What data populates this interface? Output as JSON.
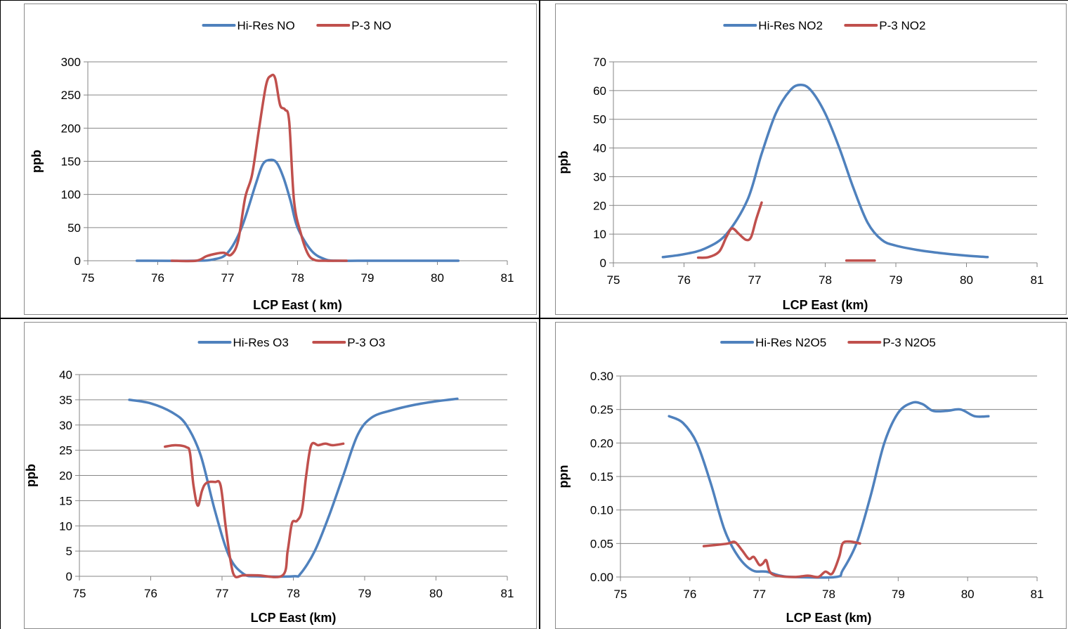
{
  "colors": {
    "hires": "#4F81BD",
    "p3": "#C0504D",
    "grid": "#868686",
    "axis": "#868686"
  },
  "chart_data": [
    {
      "type": "line",
      "xlabel": "LCP East ( km)",
      "ylabel": "ppb",
      "xlim": [
        75,
        81
      ],
      "ylim": [
        0,
        300
      ],
      "xticks": [
        "75",
        "76",
        "77",
        "78",
        "79",
        "80",
        "81"
      ],
      "yticks": [
        "0",
        "50",
        "100",
        "150",
        "200",
        "250",
        "300"
      ],
      "grid": true,
      "legend": "top-center",
      "series": [
        {
          "name": "Hi-Res NO",
          "color_key": "hires",
          "points": [
            [
              75.7,
              0
            ],
            [
              76.5,
              0
            ],
            [
              76.8,
              2
            ],
            [
              77.0,
              12
            ],
            [
              77.2,
              50
            ],
            [
              77.4,
              115
            ],
            [
              77.5,
              145
            ],
            [
              77.6,
              152
            ],
            [
              77.7,
              148
            ],
            [
              77.8,
              125
            ],
            [
              77.9,
              90
            ],
            [
              78.0,
              50
            ],
            [
              78.2,
              15
            ],
            [
              78.4,
              2
            ],
            [
              78.6,
              0
            ],
            [
              79.0,
              0
            ],
            [
              80.3,
              0
            ]
          ]
        },
        {
          "name": "P-3 NO",
          "color_key": "p3",
          "segments": [
            [
              [
                76.2,
                0
              ],
              [
                76.55,
                0
              ],
              [
                76.7,
                7
              ],
              [
                76.85,
                11
              ],
              [
                76.95,
                12
              ],
              [
                77.05,
                9
              ],
              [
                77.15,
                30
              ],
              [
                77.25,
                95
              ],
              [
                77.35,
                130
              ],
              [
                77.45,
                200
              ],
              [
                77.55,
                265
              ],
              [
                77.62,
                279
              ],
              [
                77.68,
                275
              ],
              [
                77.75,
                235
              ],
              [
                77.82,
                228
              ],
              [
                77.88,
                210
              ],
              [
                77.95,
                90
              ],
              [
                78.05,
                40
              ],
              [
                78.15,
                10
              ],
              [
                78.25,
                1
              ],
              [
                78.4,
                0
              ],
              [
                78.7,
                0
              ]
            ]
          ]
        }
      ]
    },
    {
      "type": "line",
      "xlabel": "LCP East (km)",
      "ylabel": "ppb",
      "xlim": [
        75,
        81
      ],
      "ylim": [
        0,
        70
      ],
      "xticks": [
        "75",
        "76",
        "77",
        "78",
        "79",
        "80",
        "81"
      ],
      "yticks": [
        "0",
        "10",
        "20",
        "30",
        "40",
        "50",
        "60",
        "70"
      ],
      "grid": true,
      "legend": "top-center",
      "series": [
        {
          "name": "Hi-Res NO2",
          "color_key": "hires",
          "points": [
            [
              75.7,
              2
            ],
            [
              76.0,
              3
            ],
            [
              76.3,
              5
            ],
            [
              76.6,
              10
            ],
            [
              76.9,
              22
            ],
            [
              77.1,
              38
            ],
            [
              77.3,
              52
            ],
            [
              77.5,
              60
            ],
            [
              77.65,
              62
            ],
            [
              77.8,
              60
            ],
            [
              78.0,
              52
            ],
            [
              78.2,
              40
            ],
            [
              78.4,
              26
            ],
            [
              78.6,
              14
            ],
            [
              78.8,
              8
            ],
            [
              79.0,
              6
            ],
            [
              79.3,
              4.5
            ],
            [
              79.6,
              3.5
            ],
            [
              80.0,
              2.5
            ],
            [
              80.3,
              2
            ]
          ]
        },
        {
          "name": "P-3 NO2",
          "color_key": "p3",
          "segments": [
            [
              [
                76.2,
                1.8
              ],
              [
                76.35,
                2
              ],
              [
                76.5,
                4
              ],
              [
                76.6,
                9
              ],
              [
                76.68,
                12
              ],
              [
                76.78,
                10
              ],
              [
                76.88,
                8
              ],
              [
                76.95,
                9
              ],
              [
                77.02,
                15
              ],
              [
                77.1,
                21
              ]
            ],
            [
              [
                78.3,
                0.8
              ],
              [
                78.7,
                0.8
              ]
            ]
          ]
        }
      ]
    },
    {
      "type": "line",
      "xlabel": "LCP East (km)",
      "ylabel": "ppb",
      "xlim": [
        75,
        81
      ],
      "ylim": [
        0,
        40
      ],
      "xticks": [
        "75",
        "76",
        "77",
        "78",
        "79",
        "80",
        "81"
      ],
      "yticks": [
        "0",
        "5",
        "10",
        "15",
        "20",
        "25",
        "30",
        "35",
        "40"
      ],
      "grid": true,
      "legend": "top-center",
      "series": [
        {
          "name": "Hi-Res O3",
          "color_key": "hires",
          "points": [
            [
              75.7,
              35
            ],
            [
              76.0,
              34.3
            ],
            [
              76.3,
              32.5
            ],
            [
              76.5,
              30
            ],
            [
              76.7,
              24
            ],
            [
              76.9,
              13
            ],
            [
              77.1,
              4
            ],
            [
              77.3,
              0.5
            ],
            [
              77.5,
              0
            ],
            [
              78.0,
              0
            ],
            [
              78.1,
              0.5
            ],
            [
              78.3,
              5
            ],
            [
              78.5,
              12
            ],
            [
              78.7,
              20
            ],
            [
              78.9,
              28
            ],
            [
              79.1,
              31.5
            ],
            [
              79.4,
              33
            ],
            [
              79.7,
              34
            ],
            [
              80.0,
              34.7
            ],
            [
              80.3,
              35.2
            ]
          ]
        },
        {
          "name": "P-3 O3",
          "color_key": "p3",
          "segments": [
            [
              [
                76.2,
                25.7
              ],
              [
                76.35,
                26
              ],
              [
                76.5,
                25.6
              ],
              [
                76.55,
                24.5
              ],
              [
                76.6,
                18
              ],
              [
                76.66,
                14
              ],
              [
                76.72,
                17
              ],
              [
                76.78,
                18.5
              ],
              [
                76.9,
                18.7
              ],
              [
                76.98,
                18
              ],
              [
                77.05,
                10
              ],
              [
                77.12,
                3
              ],
              [
                77.18,
                0
              ],
              [
                77.3,
                0.2
              ],
              [
                77.5,
                0.2
              ],
              [
                77.85,
                0.2
              ],
              [
                77.92,
                5
              ],
              [
                77.98,
                10.5
              ],
              [
                78.05,
                11
              ],
              [
                78.12,
                13
              ],
              [
                78.18,
                20
              ],
              [
                78.25,
                26
              ],
              [
                78.35,
                26
              ],
              [
                78.45,
                26.3
              ],
              [
                78.55,
                26
              ],
              [
                78.7,
                26.3
              ]
            ]
          ]
        }
      ]
    },
    {
      "type": "line",
      "xlabel": "LCP East (km)",
      "ylabel": "ppn",
      "xlim": [
        75,
        81
      ],
      "ylim": [
        0,
        0.3
      ],
      "xticks": [
        "75",
        "76",
        "77",
        "78",
        "79",
        "80",
        "81"
      ],
      "yticks": [
        "0.00",
        "0.05",
        "0.10",
        "0.15",
        "0.20",
        "0.25",
        "0.30"
      ],
      "grid": true,
      "legend": "top-center",
      "series": [
        {
          "name": "Hi-Res N2O5",
          "color_key": "hires",
          "points": [
            [
              75.7,
              0.24
            ],
            [
              75.9,
              0.23
            ],
            [
              76.1,
              0.2
            ],
            [
              76.3,
              0.14
            ],
            [
              76.5,
              0.07
            ],
            [
              76.7,
              0.03
            ],
            [
              76.9,
              0.01
            ],
            [
              77.1,
              0.008
            ],
            [
              77.3,
              0.002
            ],
            [
              77.5,
              0
            ],
            [
              78.1,
              0
            ],
            [
              78.2,
              0.01
            ],
            [
              78.4,
              0.05
            ],
            [
              78.6,
              0.12
            ],
            [
              78.8,
              0.2
            ],
            [
              79.0,
              0.245
            ],
            [
              79.2,
              0.26
            ],
            [
              79.35,
              0.258
            ],
            [
              79.5,
              0.248
            ],
            [
              79.7,
              0.248
            ],
            [
              79.9,
              0.25
            ],
            [
              80.1,
              0.24
            ],
            [
              80.3,
              0.24
            ]
          ]
        },
        {
          "name": "P-3 N2O5",
          "color_key": "p3",
          "segments": [
            [
              [
                76.2,
                0.046
              ],
              [
                76.4,
                0.048
              ],
              [
                76.55,
                0.05
              ],
              [
                76.65,
                0.052
              ],
              [
                76.75,
                0.04
              ],
              [
                76.85,
                0.027
              ],
              [
                76.92,
                0.03
              ],
              [
                77.0,
                0.018
              ],
              [
                77.05,
                0.02
              ],
              [
                77.1,
                0.025
              ],
              [
                77.15,
                0.008
              ],
              [
                77.25,
                0.002
              ],
              [
                77.5,
                0
              ],
              [
                77.7,
                0.002
              ],
              [
                77.85,
                0
              ],
              [
                77.95,
                0.008
              ],
              [
                78.05,
                0.005
              ],
              [
                78.15,
                0.03
              ],
              [
                78.2,
                0.05
              ],
              [
                78.3,
                0.053
              ],
              [
                78.45,
                0.05
              ]
            ]
          ]
        }
      ]
    }
  ]
}
